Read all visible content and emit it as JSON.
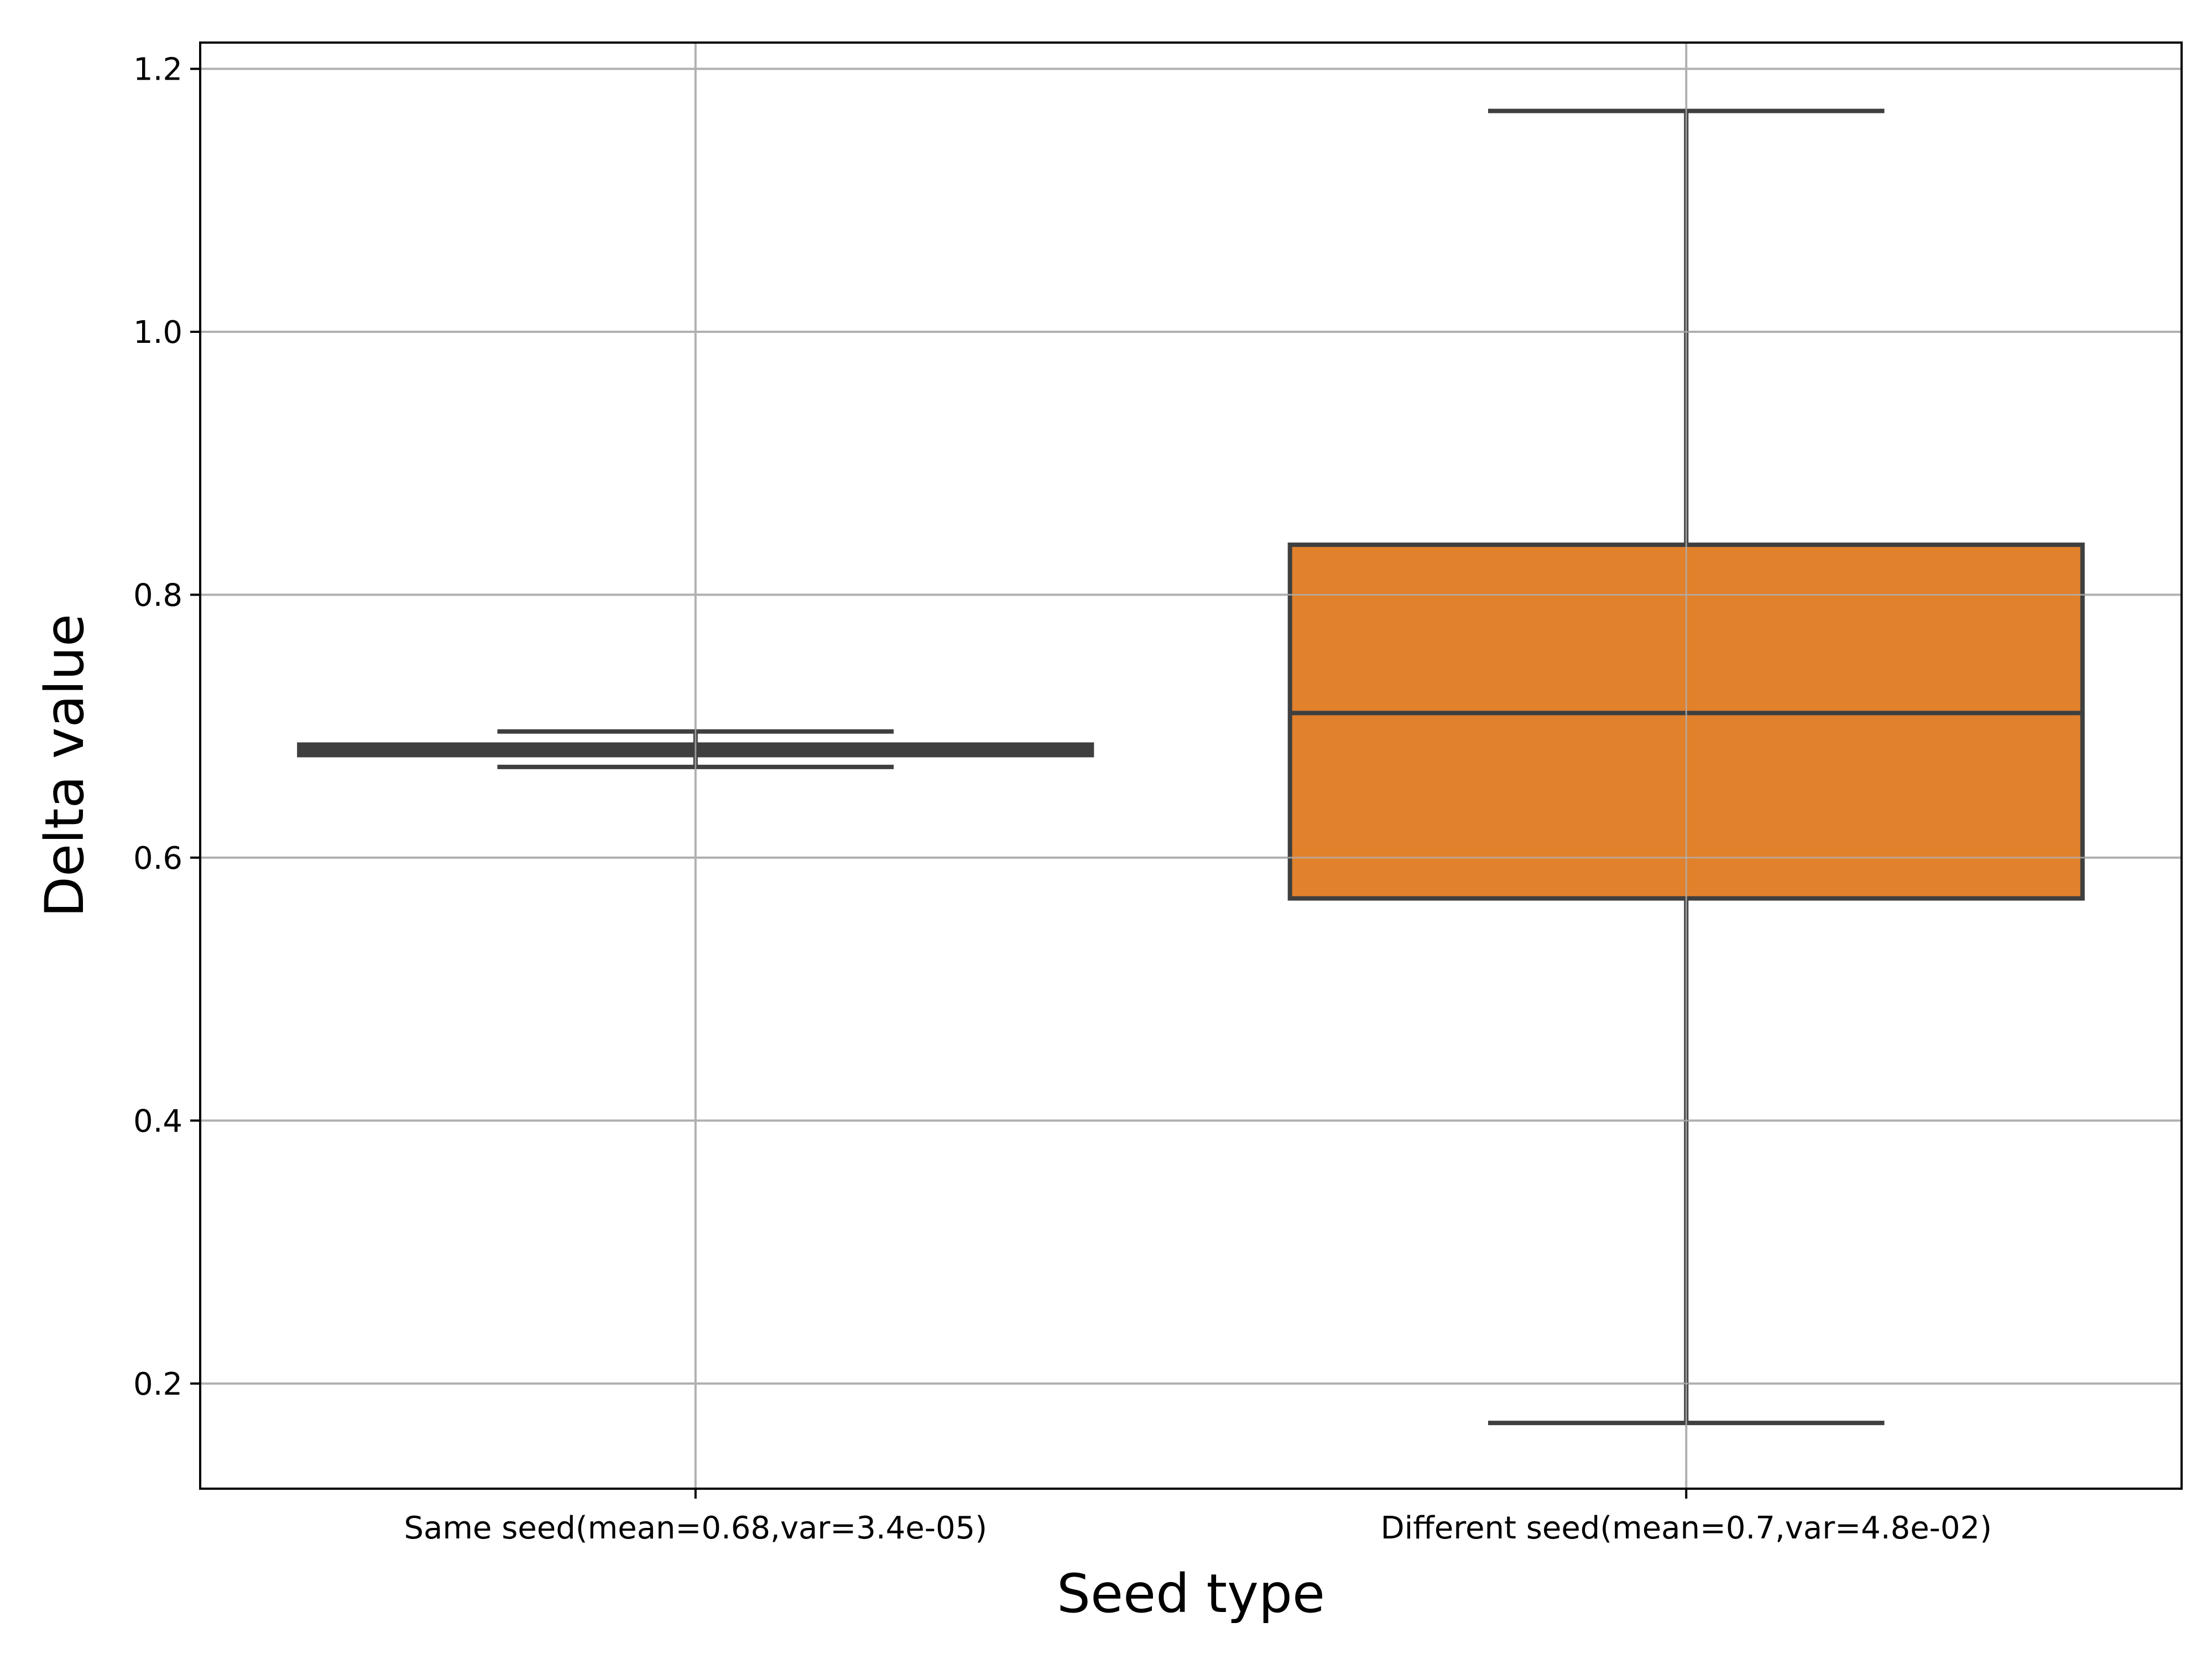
{
  "chart_data": {
    "type": "box",
    "title": "",
    "xlabel": "Seed type",
    "ylabel": "Delta value",
    "ylim": [
      0.12,
      1.22
    ],
    "yticks": [
      0.2,
      0.4,
      0.6,
      0.8,
      1.0,
      1.2
    ],
    "ytick_labels": [
      "0.2",
      "0.4",
      "0.6",
      "0.8",
      "1.0",
      "1.2"
    ],
    "grid": true,
    "categories": [
      "Same seed(mean=0.68,var=3.4e-05)",
      "Different seed(mean=0.7,var=4.8e-02)"
    ],
    "boxes": [
      {
        "whisker_low": 0.669,
        "q1": 0.678,
        "median": 0.682,
        "q3": 0.686,
        "whisker_high": 0.696,
        "color": "#3f3f3f"
      },
      {
        "whisker_low": 0.17,
        "q1": 0.569,
        "median": 0.71,
        "q3": 0.838,
        "whisker_high": 1.168,
        "color": "#e1812c"
      }
    ],
    "colors": {
      "edge": "#3f3f3f",
      "grid": "#b0b0b0",
      "frame": "#000000"
    }
  }
}
